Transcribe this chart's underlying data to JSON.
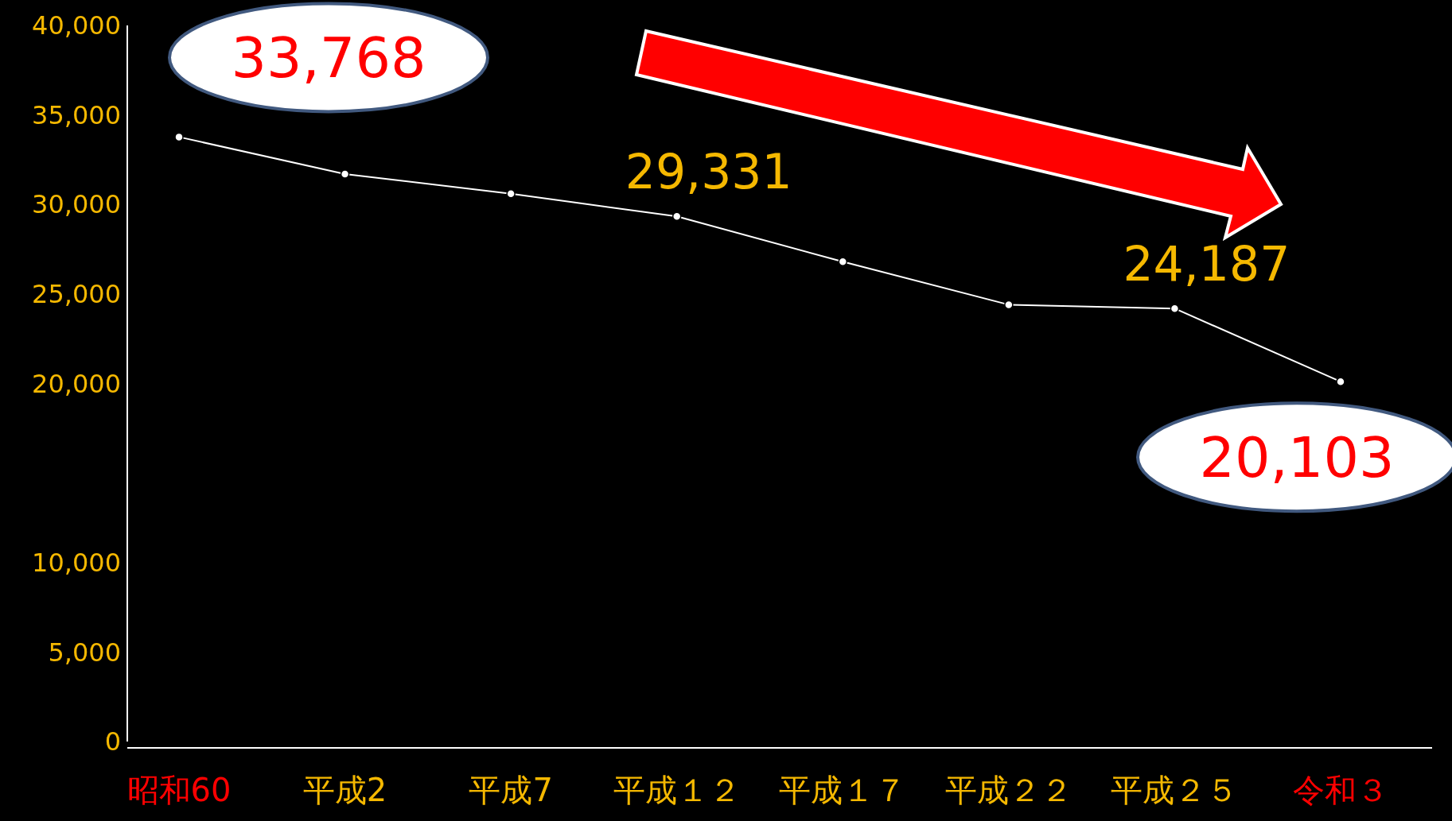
{
  "chart_data": {
    "type": "line",
    "categories": [
      "昭和60",
      "平成2",
      "平成7",
      "平成１２",
      "平成１７",
      "平成２２",
      "平成２５",
      "令和３"
    ],
    "series": [
      {
        "color": "#ffffff",
        "values": [
          33768,
          31700,
          30600,
          29331,
          26800,
          24400,
          24187,
          20103
        ],
        "value_labels": [
          "33,768",
          null,
          null,
          "29,331",
          null,
          null,
          "24,187",
          "20,103"
        ]
      }
    ],
    "ylim": [
      0,
      40000
    ],
    "yticks": [
      {
        "value": 0,
        "label": "0"
      },
      {
        "value": 5000,
        "label": "5,000"
      },
      {
        "value": 10000,
        "label": "10,000"
      },
      {
        "value": 20000,
        "label": "20,000"
      },
      {
        "value": 25000,
        "label": "25,000"
      },
      {
        "value": 30000,
        "label": "30,000"
      },
      {
        "value": 35000,
        "label": "35,000"
      },
      {
        "value": 40000,
        "label": "40,000"
      }
    ],
    "marker": "circle",
    "grid": false
  }
}
